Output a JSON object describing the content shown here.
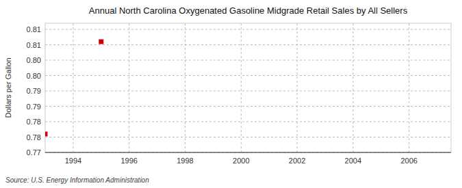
{
  "chart_data": {
    "type": "scatter",
    "title": "Annual North Carolina Oxygenated Gasoline Midgrade Retail Sales by All Sellers",
    "ylabel": "Dollars per Gallon",
    "annotations": [
      "Source: U.S. Energy Information Administration"
    ],
    "x": [
      1993,
      1995
    ],
    "values": [
      0.776,
      0.806
    ],
    "color": "#cc0000",
    "marker": "square",
    "xlim": [
      1993,
      2007.5
    ],
    "ylim": [
      0.77,
      0.812
    ],
    "xticks": [
      1994,
      1996,
      1998,
      2000,
      2002,
      2004,
      2006
    ],
    "yticks": [
      0.77,
      {
        "value": 0.775,
        "label": "0.78"
      },
      0.78,
      {
        "value": 0.785,
        "label": "0.79"
      },
      0.79,
      {
        "value": 0.795,
        "label": "0.80"
      },
      {
        "value": 0.8,
        "label": "0.80"
      },
      {
        "value": 0.805,
        "label": "0.81"
      },
      0.81
    ],
    "grid": true
  }
}
